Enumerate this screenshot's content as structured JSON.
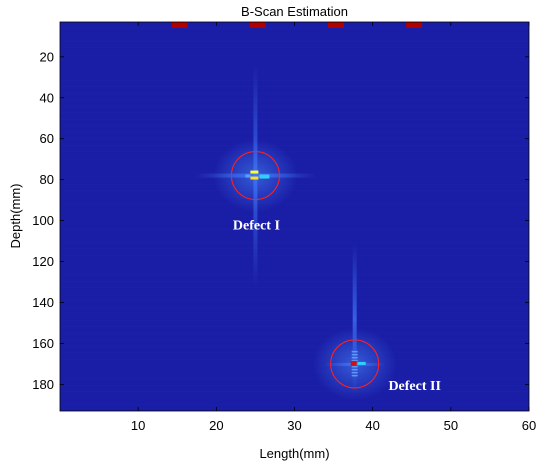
{
  "chart_data": {
    "type": "heatmap",
    "title": "B-Scan Estimation",
    "xlabel": "Length(mm)",
    "ylabel": "Depth(mm)",
    "xlim": [
      0,
      60
    ],
    "ylim": [
      193,
      3
    ],
    "y_reversed": true,
    "x_ticks": [
      10,
      20,
      30,
      40,
      50,
      60
    ],
    "y_ticks": [
      20,
      40,
      60,
      80,
      100,
      120,
      140,
      160,
      180
    ],
    "colormap": "jet",
    "background_color": "#1a1ea6",
    "transducers": [
      {
        "x": 15.3,
        "depth": 3.5
      },
      {
        "x": 25.3,
        "depth": 3.5
      },
      {
        "x": 35.3,
        "depth": 3.5
      },
      {
        "x": 45.3,
        "depth": 3.5
      }
    ],
    "defects": [
      {
        "label": "Defect I",
        "x": 25.0,
        "depth": 78
      },
      {
        "label": "Defect II",
        "x": 37.7,
        "depth": 170
      }
    ],
    "colors": {
      "circle": "#ff2020",
      "transducer": "#b00000",
      "annotation_text": "#ffffff"
    }
  }
}
